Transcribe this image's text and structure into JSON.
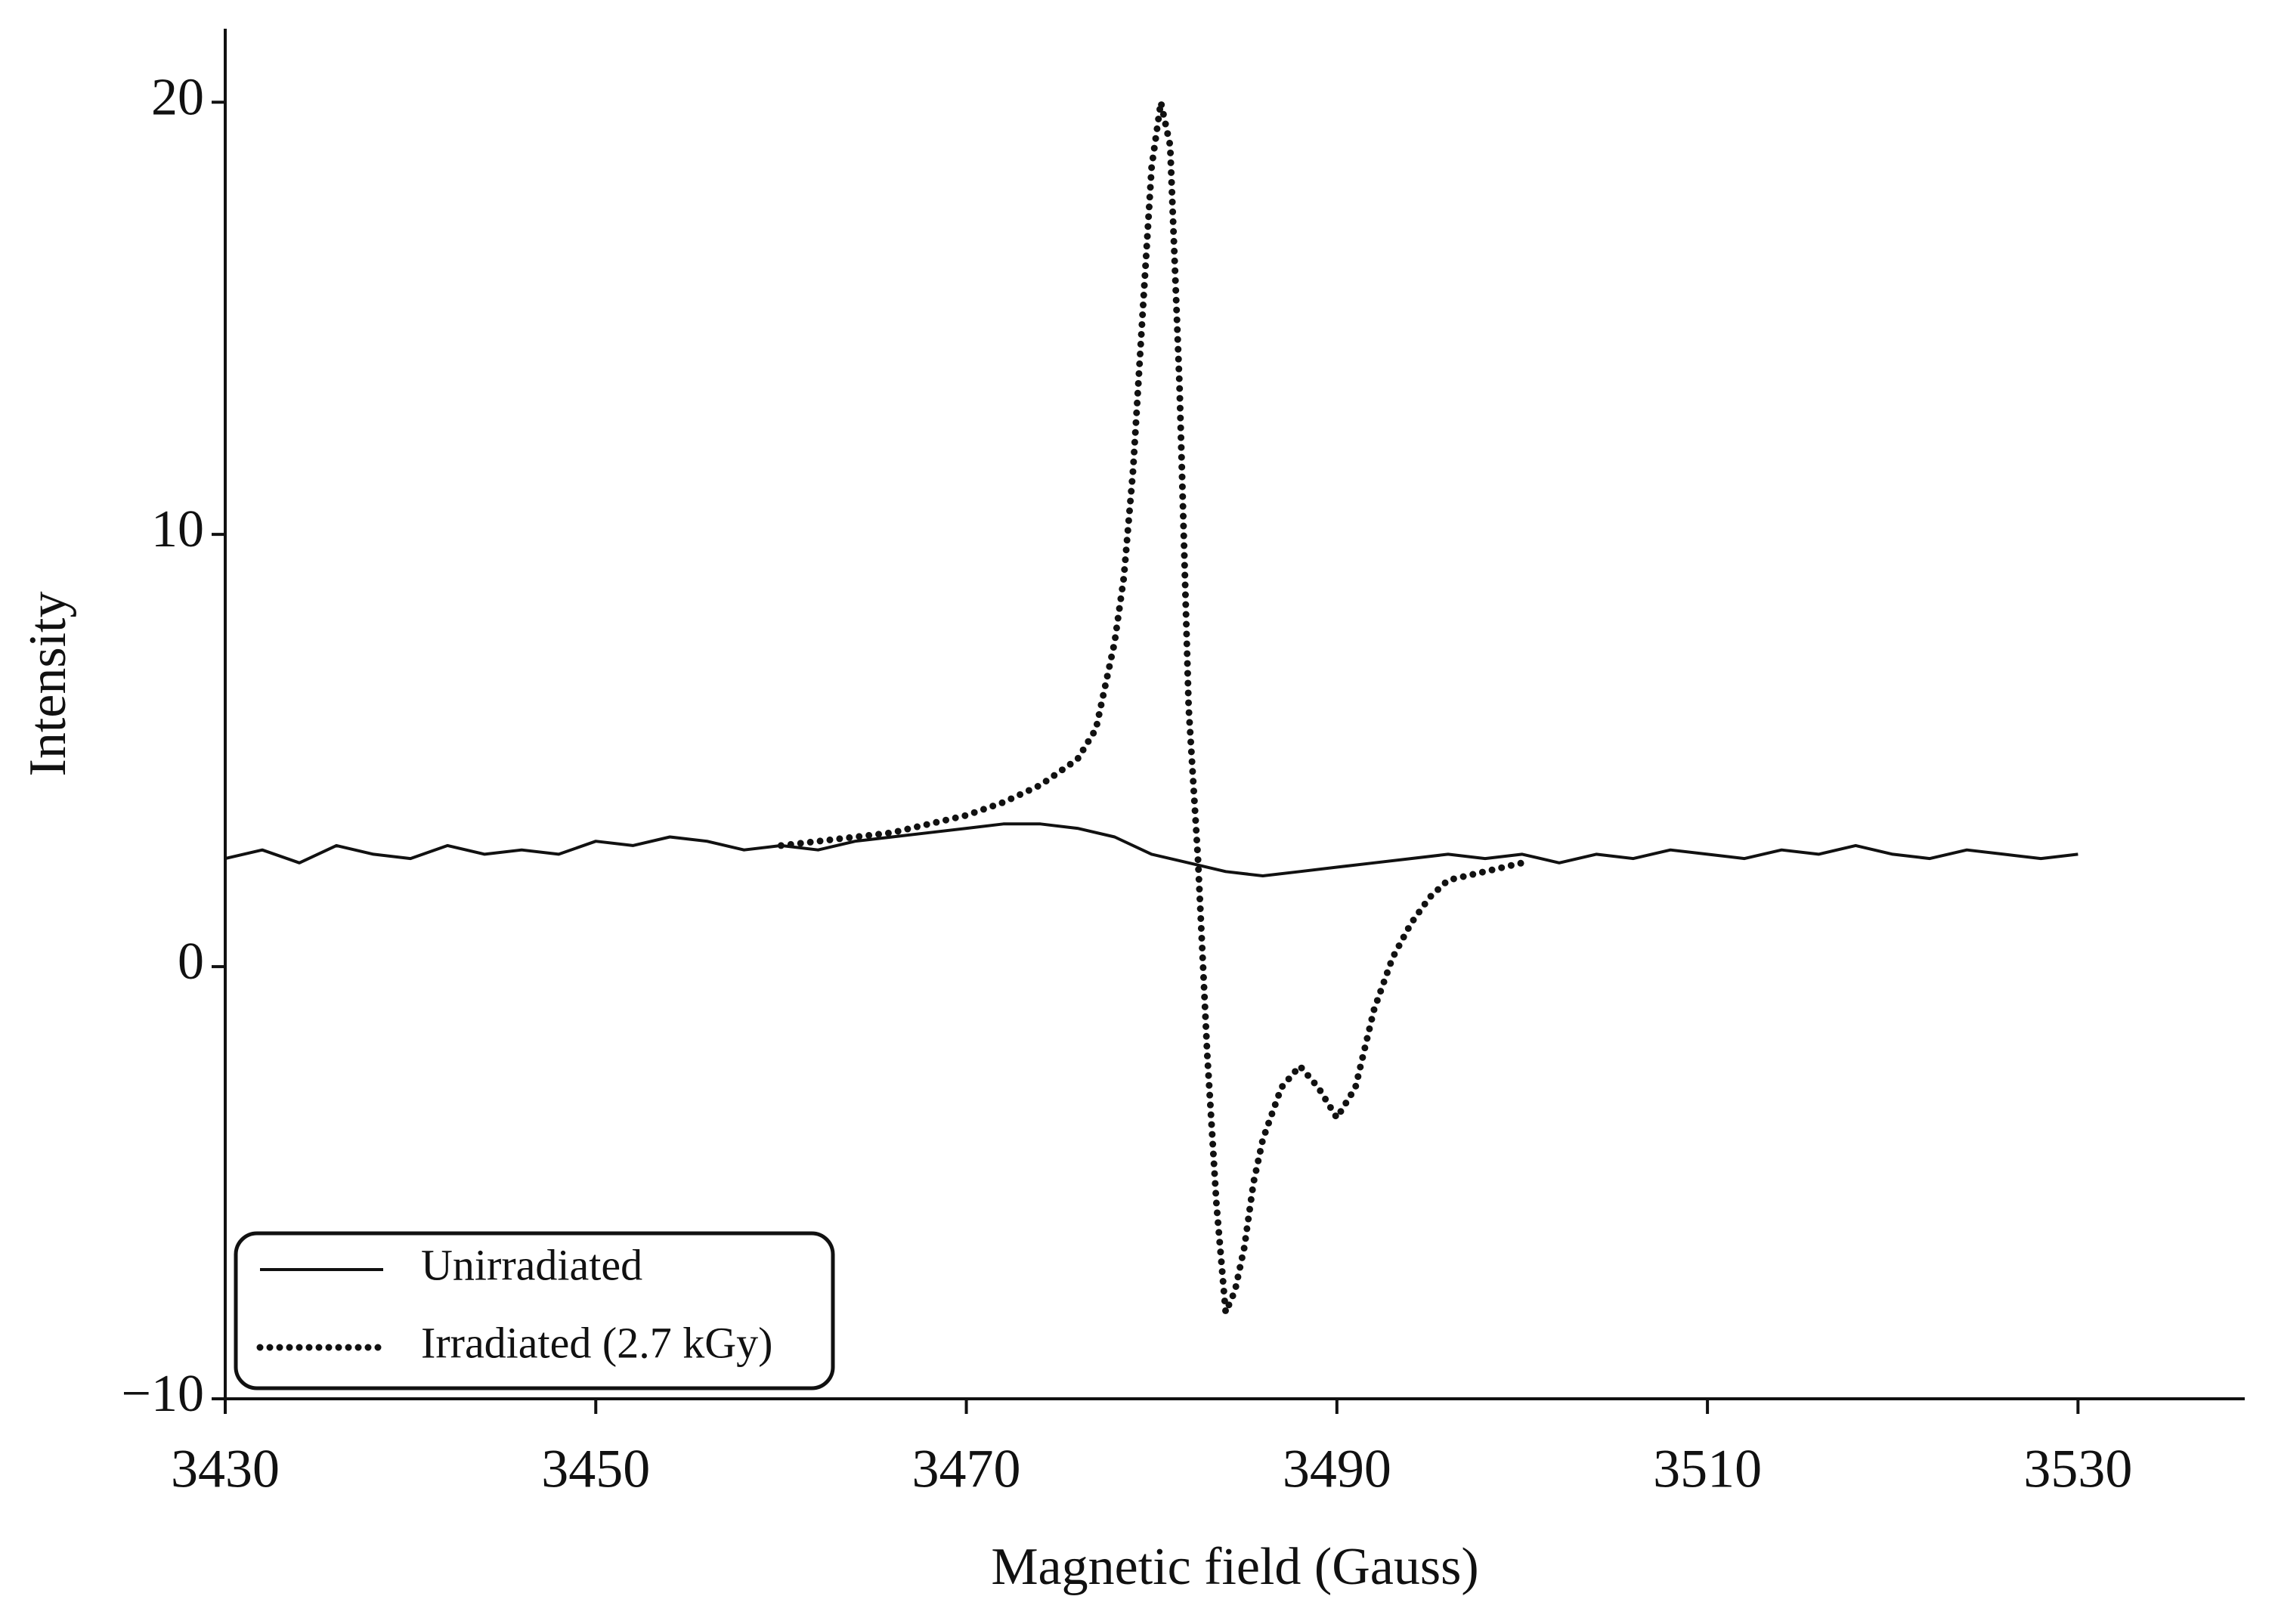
{
  "chart_data": {
    "type": "line",
    "xlabel": "Magnetic field (Gauss)",
    "ylabel": "Intensity",
    "xlim": [
      3430,
      3539
    ],
    "ylim": [
      -10,
      21.7
    ],
    "xticks": [
      3430,
      3450,
      3470,
      3490,
      3510,
      3530
    ],
    "yticks": [
      {
        "value": -10,
        "label": "−10"
      },
      0,
      10,
      20
    ],
    "legend": "lower left",
    "series": [
      {
        "name": "Unirradiated",
        "color": "#111111",
        "style": "solid",
        "x": [
          3430,
          3432,
          3434,
          3436,
          3438,
          3440,
          3442,
          3444,
          3446,
          3448,
          3450,
          3452,
          3454,
          3456,
          3458,
          3460,
          3462,
          3464,
          3466,
          3468,
          3470,
          3472,
          3474,
          3476,
          3478,
          3480,
          3482,
          3484,
          3486,
          3488,
          3490,
          3492,
          3494,
          3496,
          3498,
          3500,
          3502,
          3504,
          3506,
          3508,
          3510,
          3512,
          3514,
          3516,
          3518,
          3520,
          3522,
          3524,
          3526,
          3528,
          3530
        ],
        "values": [
          2.5,
          2.7,
          2.4,
          2.8,
          2.6,
          2.5,
          2.8,
          2.6,
          2.7,
          2.6,
          2.9,
          2.8,
          3.0,
          2.9,
          2.7,
          2.8,
          2.7,
          2.9,
          3.0,
          3.1,
          3.2,
          3.3,
          3.3,
          3.2,
          3.0,
          2.6,
          2.4,
          2.2,
          2.1,
          2.2,
          2.3,
          2.4,
          2.5,
          2.6,
          2.5,
          2.6,
          2.4,
          2.6,
          2.5,
          2.7,
          2.6,
          2.5,
          2.7,
          2.6,
          2.8,
          2.6,
          2.5,
          2.7,
          2.6,
          2.5,
          2.6
        ]
      },
      {
        "name": "Irradiated (2.7 kGy)",
        "color": "#111111",
        "style": "dotted",
        "x": [
          3460,
          3462,
          3464,
          3466,
          3468,
          3470,
          3472,
          3474,
          3476,
          3477,
          3478,
          3478.5,
          3479,
          3479.5,
          3480,
          3480.5,
          3481,
          3481.5,
          3482,
          3482.5,
          3483,
          3483.5,
          3484,
          3484.5,
          3485,
          3485.5,
          3486,
          3487,
          3488,
          3489,
          3490,
          3491,
          3492,
          3493,
          3494,
          3495,
          3496,
          3498,
          3500
        ],
        "values": [
          2.8,
          2.9,
          3.0,
          3.1,
          3.3,
          3.5,
          3.8,
          4.2,
          4.8,
          5.5,
          7.5,
          9,
          11.5,
          15,
          18.5,
          20,
          19,
          13.5,
          6,
          2.5,
          -2,
          -5.5,
          -8,
          -7.5,
          -6.5,
          -5,
          -4,
          -2.8,
          -2.3,
          -2.8,
          -3.5,
          -2.8,
          -1,
          0.2,
          1.0,
          1.6,
          2.0,
          2.2,
          2.4
        ]
      }
    ]
  }
}
